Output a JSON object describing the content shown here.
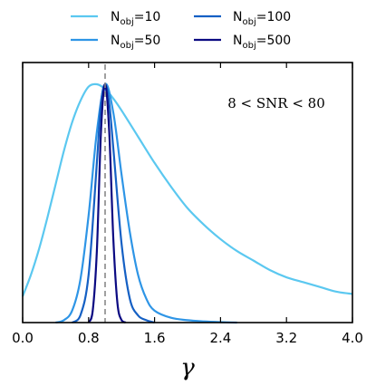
{
  "chart_data": {
    "type": "line",
    "xlabel": "γ",
    "ylabel": "",
    "xlim": [
      0.0,
      4.0
    ],
    "x_ticks": [
      "0.0",
      "0.8",
      "1.6",
      "2.4",
      "3.2",
      "4.0"
    ],
    "y_ticks": [],
    "annotation": "8 < SNR < 80",
    "reference_line": {
      "x": 1.0,
      "style": "dashed",
      "color": "#888888"
    },
    "legend": {
      "placement": "top-outside",
      "columns": 2
    },
    "series": [
      {
        "name": "N_obj=10",
        "color": "#5bc8f0",
        "peak_x": 0.9,
        "x": [
          0.0,
          0.1,
          0.2,
          0.3,
          0.4,
          0.5,
          0.6,
          0.7,
          0.8,
          0.9,
          1.0,
          1.1,
          1.2,
          1.4,
          1.6,
          1.8,
          2.0,
          2.2,
          2.4,
          2.6,
          2.8,
          3.0,
          3.2,
          3.4,
          3.6,
          3.8,
          4.0
        ],
        "y": [
          0.11,
          0.2,
          0.31,
          0.44,
          0.58,
          0.72,
          0.84,
          0.93,
          0.99,
          1.0,
          0.98,
          0.94,
          0.89,
          0.78,
          0.67,
          0.57,
          0.48,
          0.41,
          0.35,
          0.3,
          0.26,
          0.22,
          0.19,
          0.17,
          0.15,
          0.13,
          0.12
        ]
      },
      {
        "name": "N_obj=50",
        "color": "#2e95e6",
        "peak_x": 1.0,
        "x": [
          0.4,
          0.5,
          0.6,
          0.7,
          0.8,
          0.9,
          1.0,
          1.1,
          1.2,
          1.3,
          1.4,
          1.5,
          1.6,
          1.8,
          2.0,
          2.2,
          2.4,
          2.6
        ],
        "y": [
          0.0,
          0.01,
          0.05,
          0.18,
          0.45,
          0.8,
          1.0,
          0.88,
          0.62,
          0.38,
          0.2,
          0.1,
          0.05,
          0.02,
          0.01,
          0.005,
          0.002,
          0.0
        ]
      },
      {
        "name": "N_obj=100",
        "color": "#1560c4",
        "peak_x": 1.0,
        "x": [
          0.6,
          0.7,
          0.8,
          0.9,
          0.95,
          1.0,
          1.05,
          1.1,
          1.2,
          1.3,
          1.4,
          1.5,
          1.6
        ],
        "y": [
          0.0,
          0.03,
          0.2,
          0.67,
          0.92,
          1.0,
          0.92,
          0.73,
          0.33,
          0.1,
          0.03,
          0.01,
          0.0
        ]
      },
      {
        "name": "N_obj=500",
        "color": "#0b0a82",
        "peak_x": 1.0,
        "x": [
          0.8,
          0.85,
          0.9,
          0.95,
          1.0,
          1.05,
          1.1,
          1.15,
          1.2,
          1.25
        ],
        "y": [
          0.0,
          0.05,
          0.3,
          0.8,
          1.0,
          0.8,
          0.35,
          0.08,
          0.01,
          0.0
        ]
      }
    ]
  }
}
